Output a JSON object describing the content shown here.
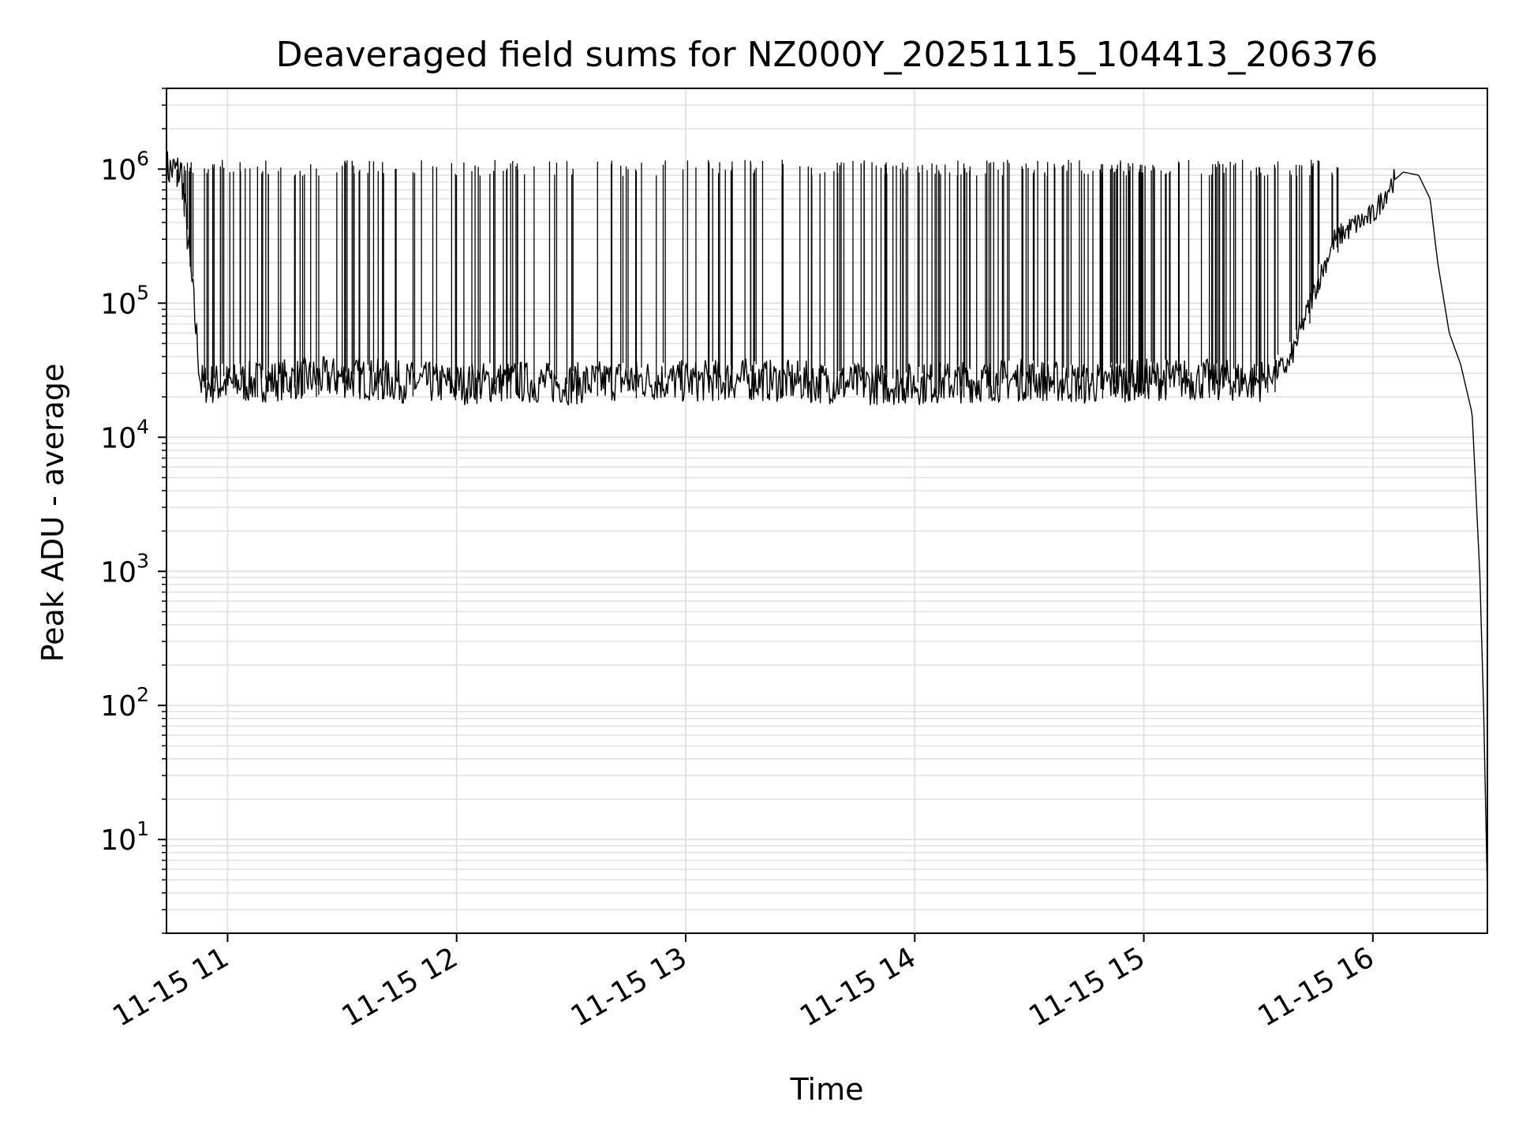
{
  "chart_data": {
    "type": "line",
    "title": "Deaveraged field sums for NZ000Y_20251115_104413_206376",
    "xlabel": "Time",
    "ylabel": "Peak ADU - average",
    "yscale": "log",
    "ylim": [
      2,
      4000000
    ],
    "xlim": [
      "2025-11-15T10:44:00",
      "2025-11-15T16:30:00"
    ],
    "grid": true,
    "grid_minor": true,
    "line_color": "#000000",
    "grid_color": "#e0e0e0",
    "x_ticks": [
      {
        "value": "2025-11-15T11:00:00",
        "label": "11-15 11"
      },
      {
        "value": "2025-11-15T12:00:00",
        "label": "11-15 12"
      },
      {
        "value": "2025-11-15T13:00:00",
        "label": "11-15 13"
      },
      {
        "value": "2025-11-15T14:00:00",
        "label": "11-15 14"
      },
      {
        "value": "2025-11-15T15:00:00",
        "label": "11-15 15"
      },
      {
        "value": "2025-11-15T16:00:00",
        "label": "11-15 16"
      }
    ],
    "y_ticks": [
      {
        "value": 10,
        "base": "10",
        "exp": "1"
      },
      {
        "value": 100,
        "base": "10",
        "exp": "2"
      },
      {
        "value": 1000,
        "base": "10",
        "exp": "3"
      },
      {
        "value": 10000,
        "base": "10",
        "exp": "4"
      },
      {
        "value": 100000,
        "base": "10",
        "exp": "5"
      },
      {
        "value": 1000000,
        "base": "10",
        "exp": "6"
      }
    ],
    "series": [
      {
        "x": [
          "2025-11-15T10:44:00",
          "2025-11-15T10:48:00",
          "2025-11-15T10:53:00",
          "2025-11-15T11:00:00",
          "2025-11-15T11:15:00",
          "2025-11-15T11:30:00",
          "2025-11-15T11:45:00",
          "2025-11-15T12:00:00",
          "2025-11-15T12:15:00",
          "2025-11-15T12:30:00",
          "2025-11-15T12:45:00",
          "2025-11-15T13:00:00",
          "2025-11-15T13:15:00",
          "2025-11-15T13:30:00",
          "2025-11-15T13:45:00",
          "2025-11-15T14:00:00",
          "2025-11-15T14:15:00",
          "2025-11-15T14:30:00",
          "2025-11-15T14:45:00",
          "2025-11-15T15:00:00",
          "2025-11-15T15:15:00",
          "2025-11-15T15:30:00",
          "2025-11-15T15:38:00",
          "2025-11-15T15:45:00",
          "2025-11-15T15:50:00",
          "2025-11-15T15:55:00",
          "2025-11-15T16:00:00",
          "2025-11-15T16:05:00",
          "2025-11-15T16:08:00",
          "2025-11-15T16:12:00",
          "2025-11-15T16:15:00",
          "2025-11-15T16:17:00",
          "2025-11-15T16:20:00",
          "2025-11-15T16:23:00",
          "2025-11-15T16:26:00",
          "2025-11-15T16:28:00",
          "2025-11-15T16:29:00",
          "2025-11-15T16:30:00"
        ],
        "y": [
          1000000,
          950000,
          25000,
          25000,
          27000,
          28000,
          26000,
          25000,
          26000,
          25000,
          27000,
          26000,
          27000,
          26000,
          25000,
          25000,
          26000,
          27000,
          25000,
          27000,
          27000,
          26000,
          35000,
          130000,
          300000,
          380000,
          450000,
          800000,
          950000,
          900000,
          600000,
          200000,
          60000,
          35000,
          15000,
          1000,
          100,
          4
        ]
      }
    ]
  }
}
